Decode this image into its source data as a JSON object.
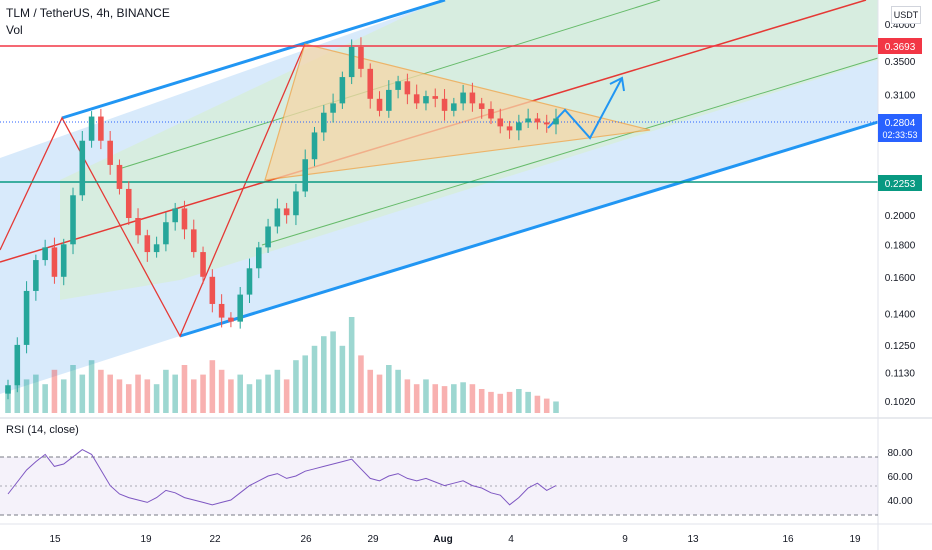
{
  "header": {
    "title": "TLM / TetherUS, 4h, BINANCE",
    "volume_label": "Vol",
    "currency": "USDT"
  },
  "rsi_panel": {
    "label": "RSI (14, close)",
    "ticks": [
      "80.00",
      "60.00",
      "40.00"
    ]
  },
  "colors": {
    "up": "#26a69a",
    "down": "#ef5350",
    "channel_blue": "#2196f3",
    "channel_fill": "#bbdefb",
    "inner_fill": "#c8e6c9",
    "inner_green": "#66bb6a",
    "median_red": "#e53935",
    "triangle": "#f4a142",
    "resistance": "#f23645",
    "support": "#089981",
    "current": "#2962ff",
    "rsi_line": "#7e57c2"
  },
  "chart_data": {
    "type": "candlestick",
    "symbol": "TLM / TetherUS",
    "timeframe": "4h",
    "exchange": "BINANCE",
    "y_scale": "log",
    "y_ticks": [
      "0.4000",
      "0.3500",
      "0.3100",
      "0.2000",
      "0.1800",
      "0.1600",
      "0.1400",
      "0.1250",
      "0.1130",
      "0.1020"
    ],
    "x_ticks": [
      "15",
      "19",
      "22",
      "26",
      "29",
      "Aug",
      "4",
      "9",
      "13",
      "16",
      "19"
    ],
    "price_labels": {
      "resistance": "0.3693",
      "current": "0.2804",
      "countdown": "02:33:53",
      "support": "0.2253"
    },
    "levels": {
      "resistance": 0.3693,
      "current": 0.2804,
      "support": 0.2253
    },
    "close_path": [
      0.108,
      0.125,
      0.152,
      0.17,
      0.178,
      0.16,
      0.18,
      0.215,
      0.262,
      0.286,
      0.262,
      0.24,
      0.22,
      0.198,
      0.186,
      0.175,
      0.18,
      0.195,
      0.205,
      0.19,
      0.175,
      0.16,
      0.145,
      0.138,
      0.136,
      0.15,
      0.165,
      0.178,
      0.192,
      0.205,
      0.2,
      0.218,
      0.245,
      0.27,
      0.29,
      0.3,
      0.33,
      0.368,
      0.34,
      0.305,
      0.292,
      0.315,
      0.325,
      0.31,
      0.3,
      0.308,
      0.305,
      0.292,
      0.3,
      0.312,
      0.3,
      0.294,
      0.284,
      0.276,
      0.272,
      0.28,
      0.284,
      0.28,
      0.278,
      0.284
    ],
    "volume_relative": [
      0.25,
      0.3,
      0.35,
      0.4,
      0.3,
      0.45,
      0.35,
      0.5,
      0.4,
      0.55,
      0.45,
      0.4,
      0.35,
      0.3,
      0.4,
      0.35,
      0.3,
      0.45,
      0.4,
      0.5,
      0.35,
      0.4,
      0.55,
      0.45,
      0.35,
      0.4,
      0.3,
      0.35,
      0.4,
      0.45,
      0.35,
      0.55,
      0.6,
      0.7,
      0.8,
      0.85,
      0.7,
      1.0,
      0.6,
      0.45,
      0.4,
      0.5,
      0.45,
      0.35,
      0.3,
      0.35,
      0.3,
      0.28,
      0.3,
      0.32,
      0.3,
      0.25,
      0.22,
      0.2,
      0.22,
      0.25,
      0.22,
      0.18,
      0.15,
      0.12
    ],
    "rsi": [
      45,
      55,
      65,
      72,
      78,
      68,
      70,
      76,
      82,
      78,
      65,
      52,
      45,
      42,
      40,
      38,
      42,
      48,
      46,
      42,
      40,
      38,
      36,
      38,
      40,
      46,
      52,
      56,
      60,
      62,
      58,
      60,
      64,
      66,
      68,
      70,
      72,
      74,
      66,
      58,
      56,
      60,
      62,
      58,
      56,
      58,
      55,
      52,
      54,
      56,
      52,
      50,
      46,
      44,
      36,
      42,
      50,
      54,
      48,
      52
    ],
    "rsi_ylim": [
      20,
      100
    ],
    "rsi_levels": [
      70,
      50,
      30
    ]
  }
}
